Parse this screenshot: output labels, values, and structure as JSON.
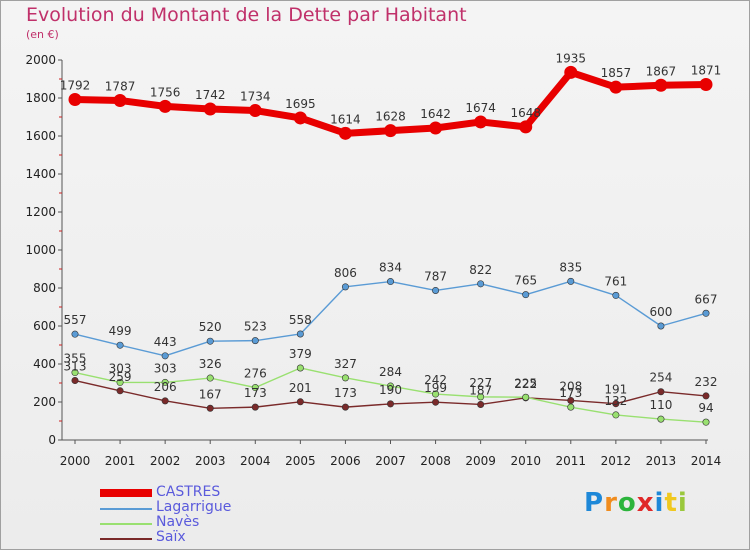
{
  "title": "Evolution du Montant de la Dette par Habitant",
  "subtitle": "(en €)",
  "logo_text": "Proxiti",
  "chart_data": {
    "type": "line",
    "title": "Evolution du Montant de la Dette par Habitant",
    "subtitle": "(en €)",
    "x": [
      "2000",
      "2001",
      "2002",
      "2003",
      "2004",
      "2005",
      "2006",
      "2007",
      "2008",
      "2009",
      "2010",
      "2011",
      "2012",
      "2013",
      "2014"
    ],
    "ylim": [
      0,
      2000
    ],
    "yticks": [
      0,
      200,
      400,
      600,
      800,
      1000,
      1200,
      1400,
      1600,
      1800,
      2000
    ],
    "grid": false,
    "legend_position": "bottom-left",
    "series": [
      {
        "name": "CASTRES",
        "color": "#e80000",
        "values": [
          1792,
          1787,
          1756,
          1742,
          1734,
          1695,
          1614,
          1628,
          1642,
          1674,
          1648,
          1935,
          1857,
          1867,
          1871
        ]
      },
      {
        "name": "Lagarrigue",
        "color": "#5a9bd5",
        "values": [
          557,
          499,
          443,
          520,
          523,
          558,
          806,
          834,
          787,
          822,
          765,
          835,
          761,
          600,
          667
        ]
      },
      {
        "name": "Navès",
        "color": "#99e070",
        "values": [
          355,
          303,
          303,
          326,
          276,
          379,
          327,
          284,
          242,
          227,
          225,
          173,
          132,
          110,
          94
        ]
      },
      {
        "name": "Saïx",
        "color": "#7a2a2a",
        "values": [
          313,
          259,
          206,
          167,
          173,
          201,
          173,
          190,
          199,
          187,
          222,
          208,
          191,
          254,
          232
        ]
      }
    ]
  }
}
